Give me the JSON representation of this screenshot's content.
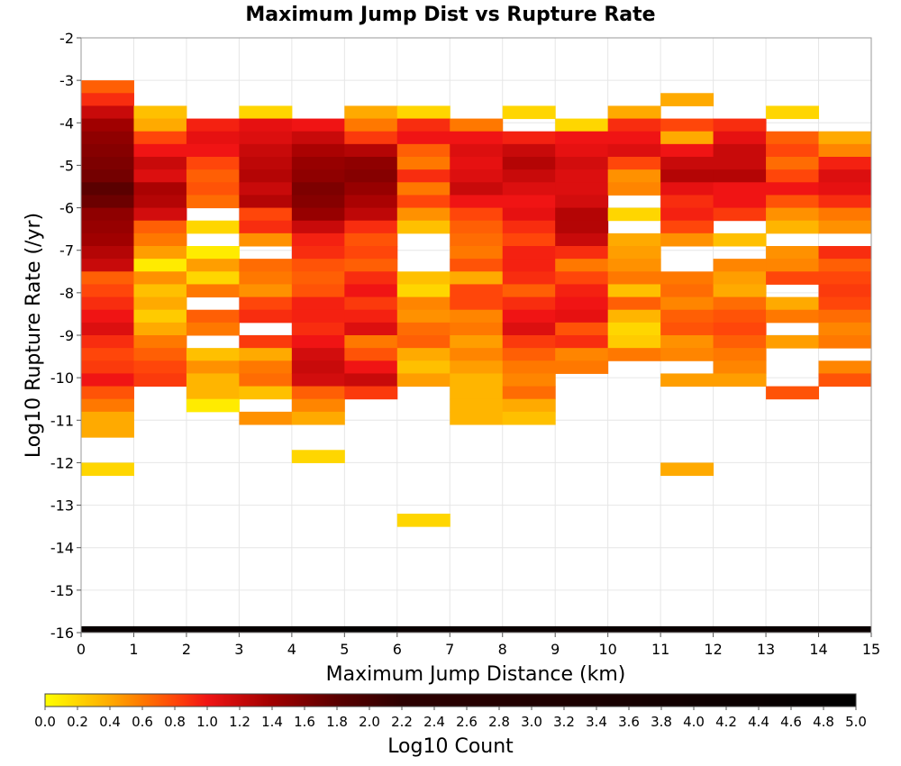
{
  "chart_data": {
    "type": "heatmap",
    "title": "Maximum Jump Dist vs Rupture Rate",
    "xlabel": "Maximum Jump Distance (km)",
    "ylabel": "Log10 Rupture Rate (/yr)",
    "xlim": [
      0,
      15
    ],
    "ylim": [
      -16,
      -2
    ],
    "x_ticks": [
      "0",
      "1",
      "2",
      "3",
      "4",
      "5",
      "6",
      "7",
      "8",
      "9",
      "10",
      "11",
      "12",
      "13",
      "14",
      "15"
    ],
    "y_ticks": [
      "-2",
      "-3",
      "-4",
      "-5",
      "-6",
      "-7",
      "-8",
      "-9",
      "-10",
      "-11",
      "-12",
      "-13",
      "-14",
      "-15",
      "-16"
    ],
    "grid": true,
    "colorbar": {
      "label": "Log10 Count",
      "min": 0.0,
      "max": 5.0,
      "colormap": "yellow-orange-red-black",
      "ticks": [
        "0.0",
        "0.2",
        "0.4",
        "0.6",
        "0.8",
        "1.0",
        "1.2",
        "1.4",
        "1.6",
        "1.8",
        "2.0",
        "2.2",
        "2.4",
        "2.6",
        "2.8",
        "3.0",
        "3.2",
        "3.4",
        "3.6",
        "3.8",
        "4.0",
        "4.2",
        "4.4",
        "4.6",
        "4.8",
        "5.0"
      ]
    },
    "bin_width_x": 1,
    "bin_height_y": 0.3,
    "columns": [
      {
        "x": 0,
        "y_top": -3.0,
        "values": [
          0.7,
          0.9,
          1.2,
          1.4,
          1.5,
          1.55,
          1.6,
          1.65,
          1.8,
          1.7,
          1.5,
          1.45,
          1.4,
          1.3,
          1.2,
          0.7,
          0.8,
          0.9,
          1.0,
          1.1,
          0.9,
          0.8,
          0.85,
          1.0,
          0.75,
          0.6,
          0.4,
          0.4,
          null,
          null,
          0.2
        ]
      },
      {
        "x": 1,
        "y_top": -3.6,
        "values": [
          0.3,
          0.4,
          0.8,
          1.0,
          1.2,
          1.1,
          1.35,
          1.3,
          1.15,
          0.7,
          0.6,
          0.45,
          0.1,
          0.5,
          0.3,
          0.4,
          0.25,
          0.4,
          0.6,
          0.7,
          0.8,
          0.85
        ]
      },
      {
        "x": 2,
        "y_top": -3.9,
        "values": [
          0.95,
          1.05,
          1.0,
          0.8,
          0.7,
          0.75,
          0.65,
          null,
          0.2,
          null,
          0.1,
          0.45,
          0.2,
          0.6,
          null,
          0.7,
          0.6,
          null,
          0.3,
          0.5,
          0.35,
          0.35,
          0.1
        ]
      },
      {
        "x": 3,
        "y_top": -3.6,
        "values": [
          0.2,
          1.05,
          1.1,
          1.2,
          1.25,
          1.3,
          1.2,
          1.3,
          0.8,
          0.9,
          0.5,
          null,
          0.65,
          0.6,
          0.5,
          0.8,
          0.9,
          null,
          0.85,
          0.4,
          0.6,
          0.65,
          0.3,
          null,
          0.5
        ]
      },
      {
        "x": 4,
        "y_top": -3.9,
        "values": [
          1.0,
          1.2,
          1.35,
          1.45,
          1.5,
          1.6,
          1.55,
          1.45,
          1.2,
          0.95,
          0.9,
          0.75,
          0.7,
          0.75,
          0.95,
          0.95,
          0.9,
          1.0,
          1.15,
          1.2,
          1.15,
          0.7,
          0.55,
          0.4,
          null,
          null,
          0.2
        ]
      },
      {
        "x": 5,
        "y_top": -3.6,
        "values": [
          0.4,
          0.6,
          0.85,
          1.3,
          1.5,
          1.55,
          1.45,
          1.35,
          1.25,
          0.9,
          0.75,
          0.8,
          0.7,
          0.9,
          1.0,
          0.85,
          0.95,
          1.1,
          0.6,
          0.75,
          1.0,
          1.2,
          0.85
        ]
      },
      {
        "x": 6,
        "y_top": -3.6,
        "values": [
          0.2,
          0.9,
          1.0,
          0.7,
          0.6,
          0.9,
          0.6,
          0.8,
          0.5,
          0.3,
          null,
          null,
          null,
          0.3,
          0.2,
          0.55,
          0.5,
          0.65,
          0.7,
          0.4,
          0.3,
          0.45,
          null,
          null,
          null,
          null,
          null,
          null,
          null,
          null,
          null,
          null,
          0.2
        ]
      },
      {
        "x": 7,
        "y_top": -3.9,
        "values": [
          0.6,
          1.0,
          1.1,
          1.05,
          1.1,
          1.2,
          1.0,
          0.8,
          0.7,
          0.65,
          0.6,
          0.75,
          0.4,
          0.8,
          0.8,
          0.55,
          0.6,
          0.45,
          0.55,
          0.45,
          0.35,
          0.35,
          0.35,
          0.35
        ]
      },
      {
        "x": 8,
        "y_top": -3.6,
        "values": [
          0.2,
          null,
          0.95,
          1.2,
          1.3,
          1.2,
          1.1,
          1.0,
          1.05,
          0.9,
          0.8,
          0.95,
          0.95,
          0.9,
          0.7,
          0.9,
          1.0,
          1.1,
          0.85,
          0.7,
          0.6,
          0.55,
          0.65,
          0.4,
          0.3
        ]
      },
      {
        "x": 9,
        "y_top": -3.9,
        "values": [
          0.2,
          1.0,
          1.05,
          1.15,
          1.1,
          1.1,
          1.15,
          1.3,
          1.3,
          1.2,
          0.9,
          0.6,
          0.8,
          0.95,
          1.0,
          1.05,
          0.75,
          0.9,
          0.55,
          0.6
        ]
      },
      {
        "x": 10,
        "y_top": -3.6,
        "values": [
          0.4,
          0.9,
          1.0,
          1.1,
          0.8,
          0.5,
          0.55,
          null,
          0.2,
          null,
          0.4,
          0.45,
          0.5,
          0.6,
          0.3,
          0.7,
          0.35,
          0.2,
          0.25,
          0.6
        ]
      },
      {
        "x": 11,
        "y_top": -3.3,
        "values": [
          0.4,
          null,
          0.8,
          0.4,
          1.0,
          1.2,
          1.3,
          1.05,
          0.9,
          0.95,
          0.8,
          0.5,
          null,
          null,
          0.6,
          0.65,
          0.55,
          0.7,
          0.75,
          0.5,
          0.55,
          null,
          0.45,
          null,
          null,
          null,
          null,
          null,
          null,
          0.4
        ]
      },
      {
        "x": 12,
        "y_top": -3.9,
        "values": [
          0.9,
          1.05,
          1.2,
          1.2,
          1.3,
          1.0,
          1.0,
          0.85,
          null,
          0.3,
          null,
          0.55,
          0.45,
          0.4,
          0.65,
          0.75,
          0.8,
          0.7,
          0.6,
          0.55,
          0.45
        ]
      },
      {
        "x": 13,
        "y_top": -3.6,
        "values": [
          0.2,
          null,
          0.7,
          0.8,
          0.65,
          0.8,
          1.0,
          0.75,
          0.5,
          0.35,
          null,
          0.5,
          0.55,
          0.8,
          null,
          0.4,
          0.6,
          null,
          0.45,
          null,
          null,
          null,
          0.75
        ]
      },
      {
        "x": 14,
        "y_top": -4.2,
        "values": [
          0.4,
          0.55,
          0.95,
          1.1,
          1.05,
          0.9,
          0.6,
          0.5,
          null,
          0.9,
          0.7,
          0.8,
          0.85,
          0.8,
          0.65,
          0.55,
          0.6,
          null,
          0.55,
          0.75
        ]
      }
    ],
    "bottom_row": {
      "y": -16,
      "height": 0.15,
      "values": [
        4.5,
        4.5,
        4.5,
        4.6,
        4.7,
        4.8,
        4.4,
        4.35,
        4.35,
        4.3,
        4.35,
        4.4,
        4.4,
        4.45,
        4.4
      ]
    }
  }
}
